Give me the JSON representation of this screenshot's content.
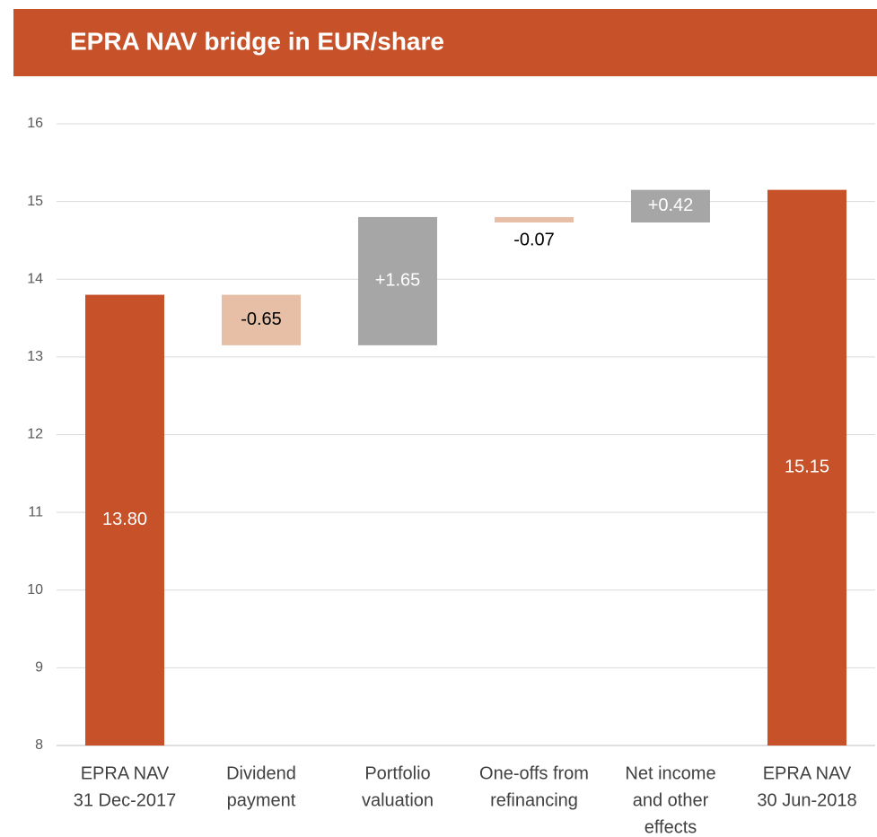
{
  "chart_data": {
    "type": "waterfall",
    "title": "EPRA NAV bridge in EUR/share",
    "categories": [
      [
        "EPRA NAV",
        "31 Dec-2017"
      ],
      [
        "Dividend",
        "payment"
      ],
      [
        "Portfolio",
        "valuation"
      ],
      [
        "One-offs from",
        "refinancing"
      ],
      [
        "Net income",
        "and other",
        "effects"
      ],
      [
        "EPRA NAV",
        "30 Jun-2018"
      ]
    ],
    "values": [
      13.8,
      -0.65,
      1.65,
      -0.07,
      0.42,
      15.15
    ],
    "value_labels": [
      "13.80",
      "-0.65",
      "+1.65",
      "-0.07",
      "+0.42",
      "15.15"
    ],
    "measure": [
      "absolute",
      "relative",
      "relative",
      "relative",
      "relative",
      "absolute"
    ],
    "colors": [
      "#c75128",
      "#e6bfa6",
      "#a6a6a6",
      "#e6bfa6",
      "#a6a6a6",
      "#c75128"
    ],
    "ylim": [
      8,
      16
    ],
    "yticks": [
      8,
      9,
      10,
      11,
      12,
      13,
      14,
      15,
      16
    ],
    "grid": true
  }
}
